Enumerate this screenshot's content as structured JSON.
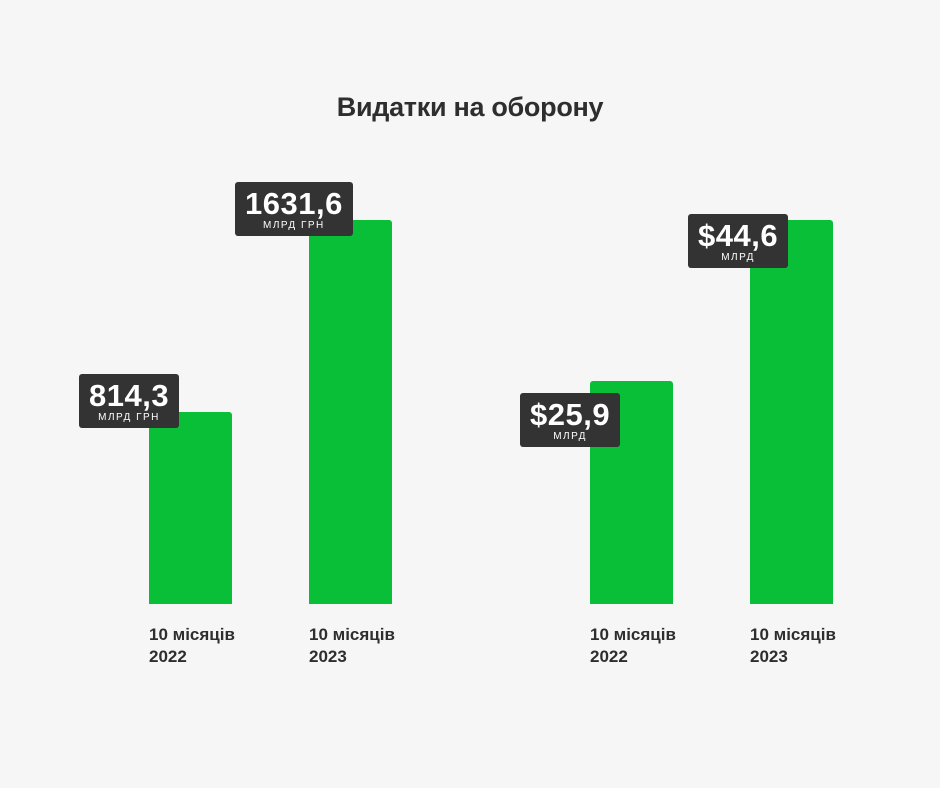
{
  "title": "Видатки на оборону",
  "colors": {
    "bar": "#0abf38",
    "badge": "#333333",
    "background": "#f6f6f6"
  },
  "chart_data": [
    {
      "type": "bar",
      "title": "",
      "categories": [
        [
          "10 місяців",
          "2022"
        ],
        [
          "10 місяців",
          "2023"
        ]
      ],
      "values": [
        814.3,
        1631.6
      ],
      "labels": [
        "814,3",
        "1631,6"
      ],
      "unit": "МЛРД ГРН",
      "ylim": [
        0,
        1631.6
      ]
    },
    {
      "type": "bar",
      "title": "",
      "categories": [
        [
          "10 місяців",
          "2022"
        ],
        [
          "10 місяців",
          "2023"
        ]
      ],
      "values": [
        25.9,
        44.6
      ],
      "labels": [
        "$25,9",
        "$44,6"
      ],
      "unit": "МЛРД",
      "ylim": [
        0,
        44.6
      ]
    }
  ]
}
